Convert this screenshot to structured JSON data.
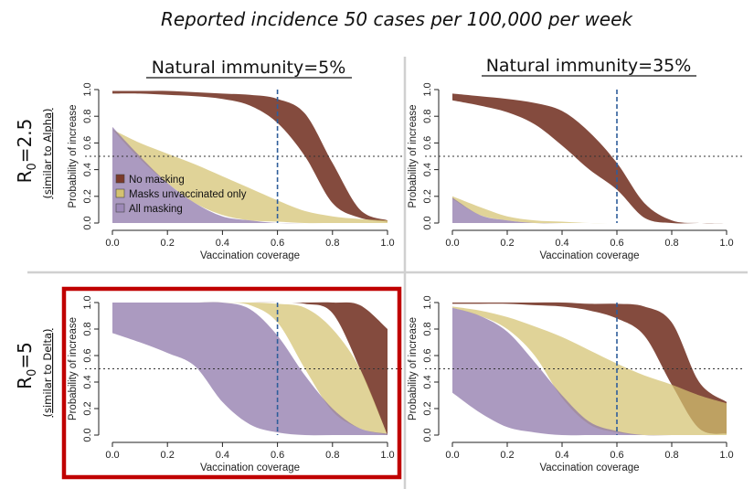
{
  "figure": {
    "title": "Reported incidence 50 cases per 100,000 per week",
    "columns": [
      "Natural immunity=5%",
      "Natural immunity=35%"
    ],
    "rows": [
      {
        "main": "R",
        "subscript": "0",
        "value": "=2.5",
        "note": "(similar to Alpha)"
      },
      {
        "main": "R",
        "subscript": "0",
        "value": "=5",
        "note": "(similar to Delta)"
      }
    ],
    "highlight_color": "#c00000"
  },
  "chart_data": {
    "type": "area",
    "xlabel": "Vaccination coverage",
    "ylabel": "Probability of increase",
    "xlim": [
      0,
      1
    ],
    "ylim": [
      0,
      1
    ],
    "xticks": [
      0.0,
      0.2,
      0.4,
      0.6,
      0.8,
      1.0
    ],
    "yticks": [
      0.0,
      0.2,
      0.4,
      0.6,
      0.8,
      1.0
    ],
    "x": [
      0.0,
      0.1,
      0.2,
      0.3,
      0.4,
      0.5,
      0.6,
      0.7,
      0.8,
      0.9,
      1.0
    ],
    "reference_vline_x": 0.6,
    "reference_hline_y": 0.5,
    "legend": {
      "placement": "lower-left",
      "entries": [
        {
          "label": "No masking",
          "color": "#7b3a2a"
        },
        {
          "label": "Masks unvaccinated only",
          "color": "#d4c270"
        },
        {
          "label": "All masking",
          "color": "#9d89b8"
        }
      ]
    },
    "panels": [
      {
        "name": "natural-immunity-5-r0-2.5",
        "series": [
          {
            "name": "No masking",
            "upper": [
              0.99,
              0.99,
              0.99,
              0.98,
              0.97,
              0.96,
              0.93,
              0.82,
              0.45,
              0.1,
              0.02
            ],
            "lower": [
              0.97,
              0.97,
              0.96,
              0.95,
              0.93,
              0.88,
              0.75,
              0.5,
              0.15,
              0.04,
              0.01
            ]
          },
          {
            "name": "Masks unvaccinated only",
            "upper": [
              0.7,
              0.6,
              0.52,
              0.44,
              0.35,
              0.26,
              0.17,
              0.09,
              0.05,
              0.03,
              0.02
            ],
            "lower": [
              0.7,
              0.48,
              0.3,
              0.15,
              0.06,
              0.02,
              0.01,
              0.0,
              0.0,
              0.0,
              0.0
            ]
          },
          {
            "name": "All masking",
            "upper": [
              0.72,
              0.5,
              0.3,
              0.15,
              0.05,
              0.02,
              0.0,
              0.0,
              0.0,
              0.0,
              0.0
            ],
            "lower": [
              0.0,
              0.0,
              0.0,
              0.0,
              0.0,
              0.0,
              0.0,
              0.0,
              0.0,
              0.0,
              0.0
            ]
          }
        ]
      },
      {
        "name": "natural-immunity-35-r0-2.5",
        "series": [
          {
            "name": "No masking",
            "upper": [
              0.97,
              0.95,
              0.93,
              0.9,
              0.84,
              0.68,
              0.45,
              0.15,
              0.02,
              0.0,
              0.0
            ],
            "lower": [
              0.92,
              0.88,
              0.83,
              0.74,
              0.58,
              0.4,
              0.25,
              0.04,
              0.0,
              0.0,
              0.0
            ]
          },
          {
            "name": "Masks unvaccinated only",
            "upper": [
              0.2,
              0.12,
              0.05,
              0.02,
              0.01,
              0.0,
              0.0,
              0.0,
              0.0,
              0.0,
              0.0
            ],
            "lower": [
              0.18,
              0.06,
              0.02,
              0.0,
              0.0,
              0.0,
              0.0,
              0.0,
              0.0,
              0.0,
              0.0
            ]
          },
          {
            "name": "All masking",
            "upper": [
              0.19,
              0.06,
              0.02,
              0.0,
              0.0,
              0.0,
              0.0,
              0.0,
              0.0,
              0.0,
              0.0
            ],
            "lower": [
              0.0,
              0.0,
              0.0,
              0.0,
              0.0,
              0.0,
              0.0,
              0.0,
              0.0,
              0.0,
              0.0
            ]
          }
        ]
      },
      {
        "name": "natural-immunity-5-r0-5",
        "series": [
          {
            "name": "No masking",
            "upper": [
              1.0,
              1.0,
              1.0,
              1.0,
              1.0,
              1.0,
              1.0,
              1.0,
              1.0,
              0.98,
              0.8
            ],
            "lower": [
              1.0,
              1.0,
              1.0,
              1.0,
              1.0,
              1.0,
              1.0,
              0.99,
              0.92,
              0.5,
              0.0
            ]
          },
          {
            "name": "Masks unvaccinated only",
            "upper": [
              1.0,
              1.0,
              1.0,
              1.0,
              1.0,
              1.0,
              0.99,
              0.96,
              0.8,
              0.5,
              0.0
            ],
            "lower": [
              1.0,
              1.0,
              1.0,
              1.0,
              1.0,
              0.98,
              0.85,
              0.5,
              0.18,
              0.05,
              0.0
            ]
          },
          {
            "name": "All masking",
            "upper": [
              1.0,
              1.0,
              1.0,
              1.0,
              1.0,
              0.95,
              0.75,
              0.45,
              0.2,
              0.05,
              0.01
            ],
            "lower": [
              0.77,
              0.7,
              0.62,
              0.52,
              0.25,
              0.08,
              0.02,
              0.0,
              0.0,
              0.0,
              0.0
            ]
          }
        ]
      },
      {
        "name": "natural-immunity-35-r0-5",
        "series": [
          {
            "name": "No masking",
            "upper": [
              1.0,
              1.0,
              1.0,
              1.0,
              1.0,
              0.99,
              0.99,
              0.97,
              0.85,
              0.4,
              0.25
            ],
            "lower": [
              0.99,
              0.99,
              0.99,
              0.98,
              0.97,
              0.94,
              0.88,
              0.75,
              0.38,
              0.05,
              0.01
            ]
          },
          {
            "name": "Masks unvaccinated only",
            "upper": [
              0.97,
              0.94,
              0.89,
              0.82,
              0.74,
              0.64,
              0.54,
              0.45,
              0.38,
              0.3,
              0.24
            ],
            "lower": [
              0.96,
              0.9,
              0.8,
              0.6,
              0.28,
              0.08,
              0.02,
              0.0,
              0.0,
              0.0,
              0.0
            ]
          },
          {
            "name": "All masking",
            "upper": [
              0.96,
              0.9,
              0.78,
              0.55,
              0.3,
              0.1,
              0.03,
              0.0,
              0.0,
              0.0,
              0.0
            ],
            "lower": [
              0.32,
              0.17,
              0.06,
              0.02,
              0.0,
              0.0,
              0.0,
              0.0,
              0.0,
              0.0,
              0.0
            ]
          }
        ]
      }
    ]
  }
}
